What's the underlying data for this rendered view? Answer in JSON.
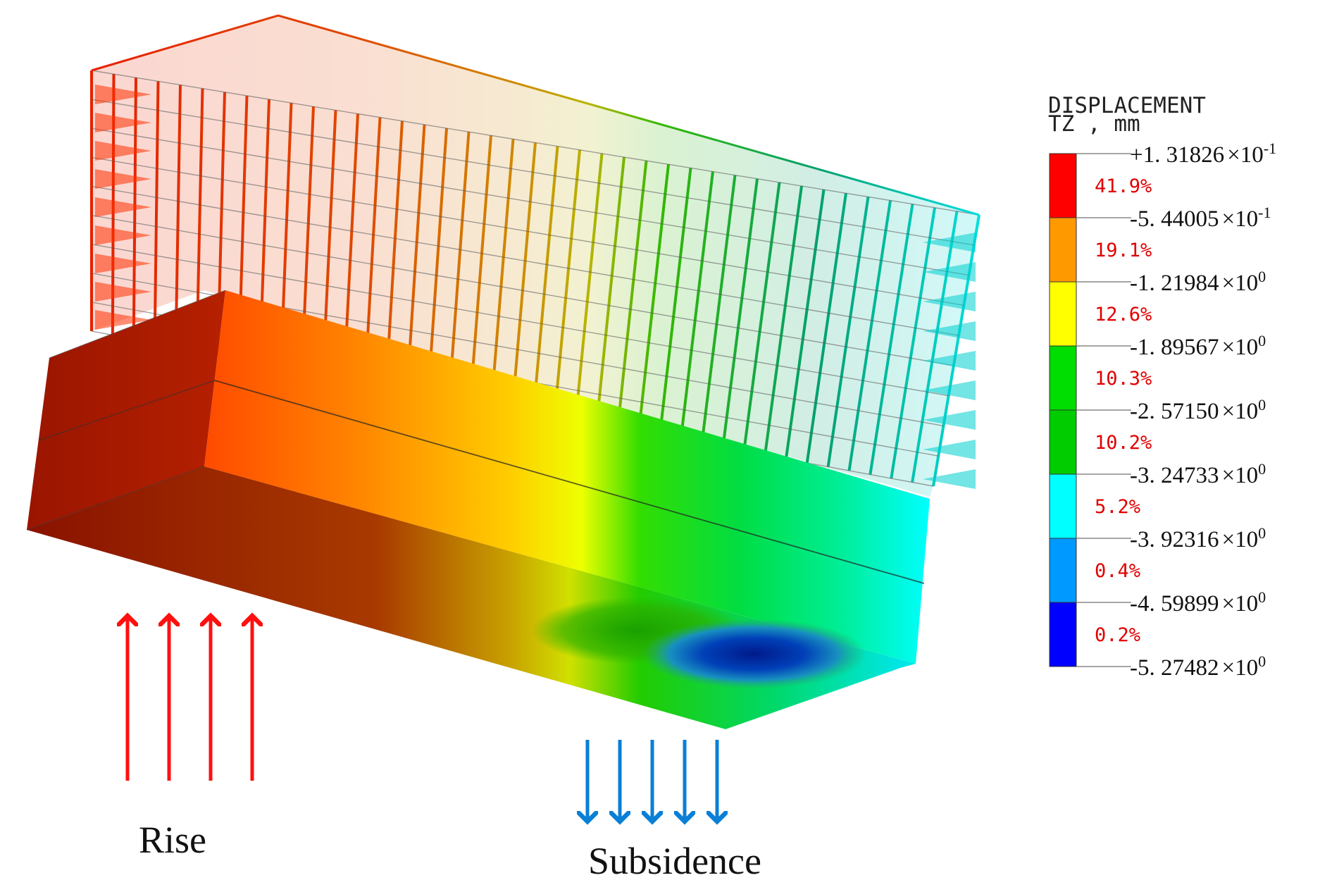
{
  "figure": {
    "labels": {
      "rise": "Rise",
      "subsidence": "Subsidence"
    }
  },
  "legend": {
    "title_line1": "DISPLACEMENT",
    "title_line2": "TZ , mm",
    "bands": [
      {
        "color": "#ff0000",
        "percent": "41.9%"
      },
      {
        "color": "#ff9900",
        "percent": "19.1%"
      },
      {
        "color": "#ffff00",
        "percent": "12.6%"
      },
      {
        "color": "#00dd00",
        "percent": "10.3%"
      },
      {
        "color": "#00cc00",
        "percent": "10.2%"
      },
      {
        "color": "#00ffff",
        "percent": "5.2%"
      },
      {
        "color": "#0099ff",
        "percent": "0.4%"
      },
      {
        "color": "#0000ff",
        "percent": "0.2%"
      }
    ],
    "values": [
      {
        "mantissa": "+1. 31826",
        "base": "×10",
        "exp": "-1"
      },
      {
        "mantissa": "-5. 44005",
        "base": "×10",
        "exp": "-1"
      },
      {
        "mantissa": "-1. 21984",
        "base": "×10",
        "exp": "0"
      },
      {
        "mantissa": "-1. 89567",
        "base": "×10",
        "exp": "0"
      },
      {
        "mantissa": "-2. 57150",
        "base": "×10",
        "exp": "0"
      },
      {
        "mantissa": "-3. 24733",
        "base": "×10",
        "exp": "0"
      },
      {
        "mantissa": "-3. 92316",
        "base": "×10",
        "exp": "0"
      },
      {
        "mantissa": "-4. 59899",
        "base": "×10",
        "exp": "0"
      },
      {
        "mantissa": "-5. 27482",
        "base": "×10",
        "exp": "0"
      }
    ]
  },
  "colors": {
    "rise_arrow": "#ff1010",
    "subsidence_arrow": "#0a7fd6",
    "rock_dark": "#8a1a00",
    "mesh_red": "#e82a00",
    "mesh_cyan": "#00e0e0"
  }
}
